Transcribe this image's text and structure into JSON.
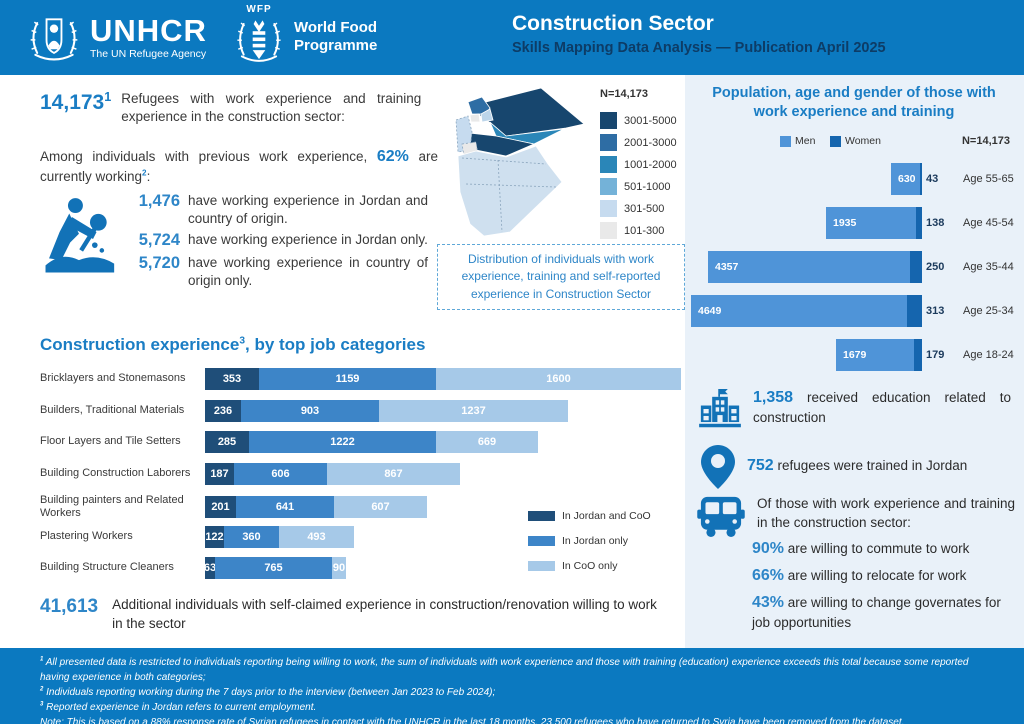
{
  "header": {
    "unhcr": {
      "name": "UNHCR",
      "tagline": "The UN Refugee Agency"
    },
    "wfp": {
      "acronym": "WFP",
      "name_line1": "World Food",
      "name_line2": "Programme"
    },
    "title": "Construction Sector",
    "subtitle": "Skills Mapping Data Analysis — Publication April 2025"
  },
  "colors": {
    "header_blue": "#0b79c0",
    "accent_blue": "#1a7dc4",
    "number_blue": "#2e86c8",
    "panel_bg": "#e9f1f9",
    "subtitle_navy": "#0d3c66",
    "bar_dark": "#1f4e79",
    "bar_medium": "#3d85c8",
    "bar_light": "#a6c9e8",
    "men_blue": "#4f94d8",
    "women_blue": "#1565ae"
  },
  "intro": {
    "headline_number": "14,173",
    "headline_sup": "1",
    "headline_text": "Refugees with work experience and training experience in the construction sector:",
    "working_pre": "Among individuals with previous work experience, ",
    "working_pct": "62%",
    "working_post": " are currently working",
    "working_sup": "2",
    "working_suffix": ":",
    "stats": [
      {
        "value": "1,476",
        "text": "have working experience in Jordan and country of origin."
      },
      {
        "value": "5,724",
        "text": "have working experience in Jordan only."
      },
      {
        "value": "5,720",
        "text": "have working experience in country of origin only."
      }
    ]
  },
  "map": {
    "n_label": "N=14,173",
    "legend": [
      {
        "label": "3001-5000",
        "color": "#17466e"
      },
      {
        "label": "2001-3000",
        "color": "#2e6da4"
      },
      {
        "label": "1001-2000",
        "color": "#2a86b8"
      },
      {
        "label": "501-1000",
        "color": "#74b2d8"
      },
      {
        "label": "301-500",
        "color": "#c6dbef"
      },
      {
        "label": "101-300",
        "color": "#e9e9e9"
      }
    ],
    "caption": "Distribution of individuals with work experience, training and self-reported experience in Construction Sector"
  },
  "job_section": {
    "title_pre": "Construction experience",
    "title_sup": "3",
    "title_post": ", by top job categories"
  },
  "additional": {
    "value": "41,613",
    "text": "Additional individuals with self-claimed experience in construction/renovation willing to work in the sector"
  },
  "right_facts": {
    "education": {
      "value": "1,358",
      "text": " received education related to construction"
    },
    "trained": {
      "value": "752",
      "text": " refugees were trained in Jordan"
    },
    "mobility": {
      "intro": "Of those with work experience and training in the construction sector:",
      "items": [
        {
          "pct": "90%",
          "text": " are willing to commute to work"
        },
        {
          "pct": "66%",
          "text": " are willing to relocate for work"
        },
        {
          "pct": "43%",
          "text": " are willing to change governates for job opportunities"
        }
      ]
    }
  },
  "footnotes": [
    {
      "sup": "1",
      "text": " All presented data is restricted to individuals reporting being willing to work, the sum of individuals with work experience and those with training (education) experience exceeds this total because some reported having experience in both categories;"
    },
    {
      "sup": "2",
      "text": " Individuals reporting working during the 7 days prior to the interview (between Jan 2023 to Feb 2024);"
    },
    {
      "sup": "3",
      "text": " Reported experience in Jordan refers to current employment."
    },
    {
      "sup": "",
      "text": "Note: This is based on a 88% response rate of Syrian refugees in contact with the UNHCR in the last 18 months. 23,500 refugees who have returned to Syria have been removed from the dataset."
    }
  ],
  "chart_data": [
    {
      "type": "bar",
      "orientation": "horizontal",
      "title": "Population, age and gender of those with work experience and training",
      "n_label": "N=14,173",
      "categories": [
        "Age 55-65",
        "Age 45-54",
        "Age 35-44",
        "Age 25-34",
        "Age 18-24"
      ],
      "series": [
        {
          "name": "Men",
          "values": [
            630,
            1935,
            4357,
            4649,
            1679
          ],
          "color": "#4f94d8"
        },
        {
          "name": "Women",
          "values": [
            43,
            138,
            250,
            313,
            179
          ],
          "color": "#1565ae"
        }
      ],
      "legend_position": "top",
      "value_labels": true,
      "xlim": [
        0,
        5000
      ]
    },
    {
      "type": "bar",
      "orientation": "horizontal",
      "stacked": true,
      "title": "Construction experience, by top job categories",
      "categories": [
        "Bricklayers and Stonemasons",
        "Builders, Traditional Materials",
        "Floor Layers and Tile Setters",
        "Building Construction Laborers",
        "Building painters and Related Workers",
        "Plastering Workers",
        "Building Structure Cleaners"
      ],
      "series": [
        {
          "name": "In Jordan and CoO",
          "values": [
            353,
            236,
            285,
            187,
            201,
            122,
            63
          ],
          "color": "#1f4e79"
        },
        {
          "name": "In Jordan only",
          "values": [
            1159,
            903,
            1222,
            606,
            641,
            360,
            765
          ],
          "color": "#3d85c8"
        },
        {
          "name": "In CoO only",
          "values": [
            1600,
            1237,
            669,
            867,
            607,
            493,
            90
          ],
          "color": "#a6c9e8"
        }
      ],
      "legend_position": "right",
      "value_labels": true,
      "xlim": [
        0,
        3200
      ]
    }
  ]
}
